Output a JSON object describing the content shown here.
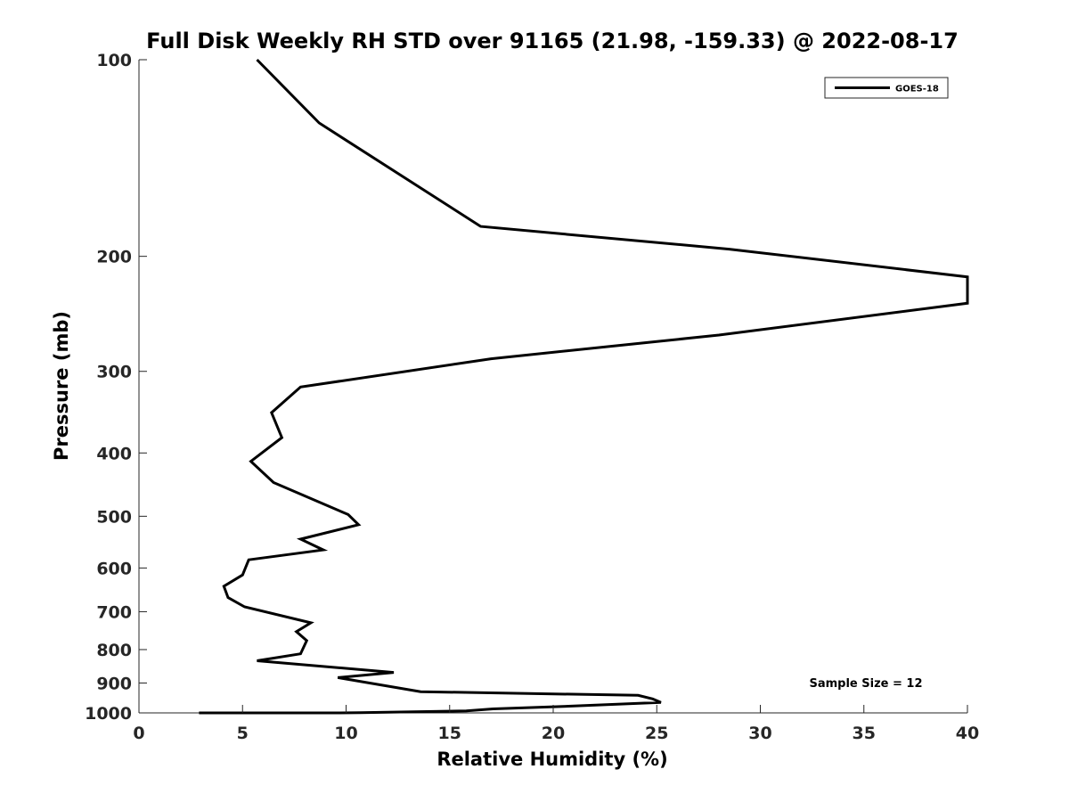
{
  "chart_data": {
    "type": "line",
    "title": "Full Disk Weekly RH STD over 91165 (21.98, -159.33) @ 2022-08-17",
    "xlabel": "Relative Humidity (%)",
    "ylabel": "Pressure (mb)",
    "xlim": [
      0,
      40
    ],
    "ylim": [
      100,
      1000
    ],
    "y_scale": "log",
    "y_reversed": true,
    "grid": false,
    "legend_position": "top-right",
    "x_ticks": [
      0,
      5,
      10,
      15,
      20,
      25,
      30,
      35,
      40
    ],
    "y_ticks": [
      100,
      200,
      300,
      400,
      500,
      600,
      700,
      800,
      900,
      1000
    ],
    "series": [
      {
        "name": "GOES-18",
        "color": "#000000",
        "points": [
          [
            5.7,
            100
          ],
          [
            8.7,
            125
          ],
          [
            16.5,
            180
          ],
          [
            28.5,
            195
          ],
          [
            40.0,
            215
          ],
          [
            40.0,
            236
          ],
          [
            28.0,
            264
          ],
          [
            17.0,
            287
          ],
          [
            7.8,
            317
          ],
          [
            6.4,
            347
          ],
          [
            6.9,
            379
          ],
          [
            5.4,
            412
          ],
          [
            6.5,
            444
          ],
          [
            10.1,
            497
          ],
          [
            10.6,
            515
          ],
          [
            7.8,
            542
          ],
          [
            8.9,
            563
          ],
          [
            5.3,
            583
          ],
          [
            5.0,
            615
          ],
          [
            4.1,
            640
          ],
          [
            4.3,
            666
          ],
          [
            5.1,
            688
          ],
          [
            8.3,
            728
          ],
          [
            7.6,
            751
          ],
          [
            8.1,
            775
          ],
          [
            7.8,
            812
          ],
          [
            5.7,
            832
          ],
          [
            12.3,
            867
          ],
          [
            9.6,
            883
          ],
          [
            13.6,
            928
          ],
          [
            24.1,
            940
          ],
          [
            24.8,
            952
          ],
          [
            25.2,
            964
          ],
          [
            21.0,
            976
          ],
          [
            17.1,
            986
          ],
          [
            15.8,
            993
          ],
          [
            10.7,
            999
          ],
          [
            9.5,
            1003
          ],
          [
            8.1,
            1009
          ],
          [
            10.0,
            1013
          ],
          [
            9.8,
            1019
          ],
          [
            5.5,
            1023
          ],
          [
            5.2,
            1028
          ],
          [
            3.6,
            1032
          ],
          [
            2.9,
            1036
          ]
        ]
      }
    ],
    "annotation": "Sample Size = 12"
  }
}
